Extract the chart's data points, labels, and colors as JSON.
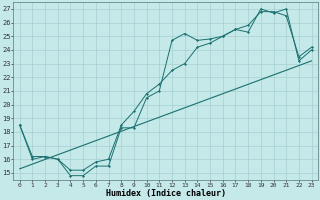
{
  "title": "",
  "xlabel": "Humidex (Indice chaleur)",
  "bg_color": "#c5e8e8",
  "grid_color": "#a8d0d0",
  "line_color": "#1a7070",
  "xlim": [
    -0.5,
    23.5
  ],
  "ylim": [
    14.5,
    27.5
  ],
  "xticks": [
    0,
    1,
    2,
    3,
    4,
    5,
    6,
    7,
    8,
    9,
    10,
    11,
    12,
    13,
    14,
    15,
    16,
    17,
    18,
    19,
    20,
    21,
    22,
    23
  ],
  "yticks": [
    15,
    16,
    17,
    18,
    19,
    20,
    21,
    22,
    23,
    24,
    25,
    26,
    27
  ],
  "line1_x": [
    0,
    1,
    2,
    3,
    4,
    5,
    6,
    7,
    8,
    9,
    10,
    11,
    12,
    13,
    14,
    15,
    16,
    17,
    18,
    19,
    20,
    21,
    22,
    23
  ],
  "line1_y": [
    18.5,
    16.0,
    16.2,
    16.0,
    14.8,
    14.8,
    15.5,
    15.5,
    18.3,
    18.3,
    20.5,
    21.0,
    24.7,
    25.2,
    24.7,
    24.8,
    25.0,
    25.5,
    25.3,
    27.0,
    26.7,
    27.0,
    23.2,
    24.0
  ],
  "line2_x": [
    0,
    1,
    2,
    3,
    4,
    5,
    6,
    7,
    8,
    9,
    10,
    11,
    12,
    13,
    14,
    15,
    16,
    17,
    18,
    19,
    20,
    21,
    22,
    23
  ],
  "line2_y": [
    18.5,
    16.2,
    16.2,
    16.0,
    15.2,
    15.2,
    15.8,
    16.0,
    18.5,
    19.5,
    20.8,
    21.5,
    22.5,
    23.0,
    24.2,
    24.5,
    25.0,
    25.5,
    25.8,
    26.8,
    26.8,
    26.5,
    23.5,
    24.2
  ],
  "line3_x": [
    0,
    23
  ],
  "line3_y": [
    15.3,
    23.2
  ]
}
